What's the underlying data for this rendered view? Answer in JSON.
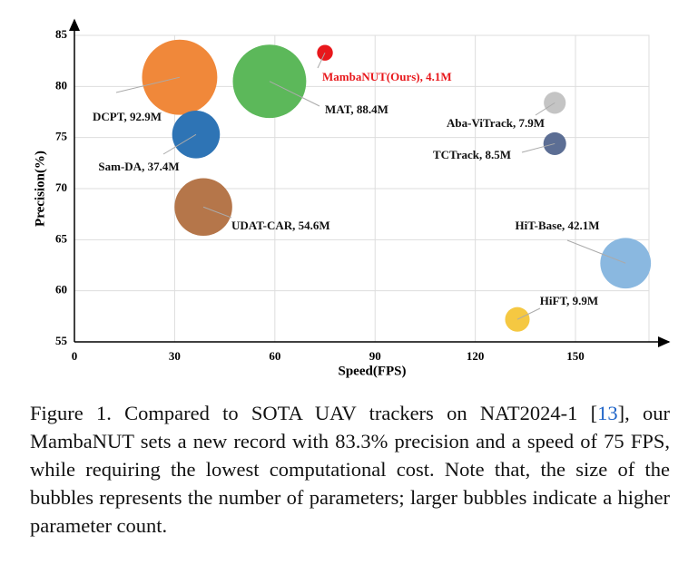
{
  "chart_data": {
    "type": "bubble",
    "xlabel": "Speed(FPS)",
    "ylabel": "Precision(%)",
    "xlim": [
      0,
      172
    ],
    "ylim": [
      55,
      85
    ],
    "xticks": [
      0,
      30,
      60,
      90,
      120,
      150
    ],
    "yticks": [
      55,
      60,
      65,
      70,
      75,
      80,
      85
    ],
    "grid": true,
    "series": [
      {
        "name": "DCPT, 92.9M",
        "color": "#f0883a",
        "x": [
          31.5
        ],
        "values": [
          80.9
        ],
        "sizes": [
          92.9
        ]
      },
      {
        "name": "MAT, 88.4M",
        "color": "#5cb85a",
        "x": [
          58.4
        ],
        "values": [
          80.5
        ],
        "sizes": [
          88.4
        ]
      },
      {
        "name": "MambaNUT(Ours), 4.1M",
        "color": "#e8181c",
        "x": [
          75
        ],
        "values": [
          83.3
        ],
        "sizes": [
          4.1
        ]
      },
      {
        "name": "Sam-DA, 37.4M",
        "color": "#2e74b5",
        "x": [
          36.4
        ],
        "values": [
          75.3
        ],
        "sizes": [
          37.4
        ]
      },
      {
        "name": "UDAT-CAR, 54.6M",
        "color": "#b5764a",
        "x": [
          38.6
        ],
        "values": [
          68.2
        ],
        "sizes": [
          54.6
        ]
      },
      {
        "name": "Aba-ViTrack, 7.9M",
        "color": "#c4c4c4",
        "x": [
          143.8
        ],
        "values": [
          78.4
        ],
        "sizes": [
          7.9
        ]
      },
      {
        "name": "TCTrack, 8.5M",
        "color": "#5c6e94",
        "x": [
          143.8
        ],
        "values": [
          74.4
        ],
        "sizes": [
          8.5
        ]
      },
      {
        "name": "HiT-Base, 42.1M",
        "color": "#8ab8e0",
        "x": [
          165
        ],
        "values": [
          62.7
        ],
        "sizes": [
          42.1
        ]
      },
      {
        "name": "HiFT, 9.9M",
        "color": "#f5c842",
        "x": [
          132.6
        ],
        "values": [
          57.2
        ],
        "sizes": [
          9.9
        ]
      }
    ]
  },
  "caption": [
    "Figure 1. Compared to SOTA UAV trackers on NAT2024-1 [",
    "13",
    "], our MambaNUT sets a new record with 83.3% precision and a speed of 75 FPS, while requiring the lowest computational cost. Note that, the size of the bubbles represents the number of parameters; larger bubbles indicate a higher parameter count."
  ]
}
